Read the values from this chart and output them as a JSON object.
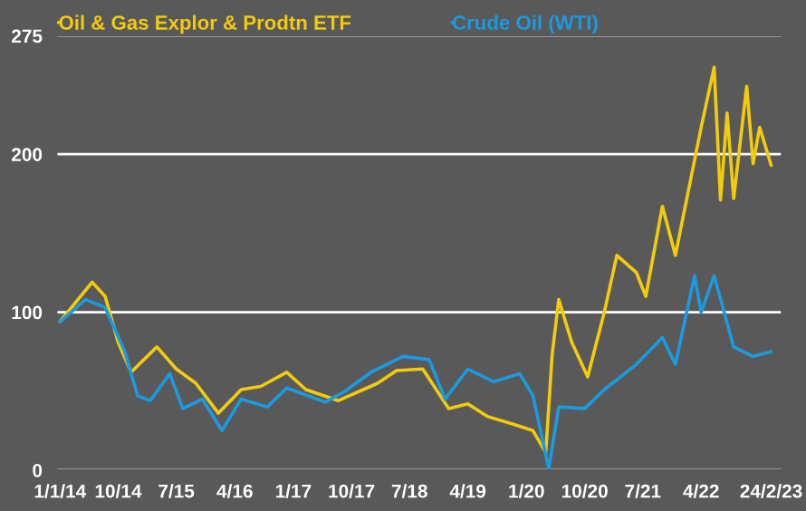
{
  "chart_data": {
    "type": "line",
    "legend": "top left",
    "grid": "y",
    "marker": "none",
    "line_style": "solid",
    "ylim": [
      0,
      275
    ],
    "yticks": [
      0,
      100,
      200,
      275
    ],
    "xlim": [
      "2013-12-15",
      "2023-04-15"
    ],
    "xticks": [
      {
        "value": "2014-01-01",
        "label": "1/1/14"
      },
      {
        "value": "2014-10-01",
        "label": "10/14"
      },
      {
        "value": "2015-07-01",
        "label": "7/15"
      },
      {
        "value": "2016-04-01",
        "label": "4/16"
      },
      {
        "value": "2017-01-01",
        "label": "1/17"
      },
      {
        "value": "2017-10-01",
        "label": "10/17"
      },
      {
        "value": "2018-07-01",
        "label": "7/18"
      },
      {
        "value": "2019-04-01",
        "label": "4/19"
      },
      {
        "value": "2020-01-01",
        "label": "1/20"
      },
      {
        "value": "2020-10-01",
        "label": "10/20"
      },
      {
        "value": "2021-07-01",
        "label": "7/21"
      },
      {
        "value": "2022-04-01",
        "label": "4/22"
      },
      {
        "value": "2023-02-24",
        "label": "24/2/23"
      }
    ],
    "series": [
      {
        "name": "Oil & Gas Explor & Prodtn ETF",
        "color": "#f2cc0c",
        "x": [
          "2014-01-01",
          "2014-06-01",
          "2014-08-01",
          "2014-10-01",
          "2014-12-01",
          "2015-04-01",
          "2015-07-01",
          "2015-10-01",
          "2016-01-15",
          "2016-05-01",
          "2016-08-01",
          "2016-12-01",
          "2017-03-01",
          "2017-08-01",
          "2018-02-01",
          "2018-05-01",
          "2018-09-01",
          "2019-01-01",
          "2019-04-01",
          "2019-07-01",
          "2019-11-01",
          "2020-02-01",
          "2020-04-01",
          "2020-05-01",
          "2020-06-01",
          "2020-08-01",
          "2020-10-15",
          "2021-01-01",
          "2021-03-01",
          "2021-06-01",
          "2021-07-15",
          "2021-10-01",
          "2021-12-01",
          "2022-04-01",
          "2022-06-01",
          "2022-07-01",
          "2022-08-01",
          "2022-09-01",
          "2022-11-01",
          "2022-12-01",
          "2023-01-01",
          "2023-02-24"
        ],
        "values": [
          94,
          119,
          110,
          81,
          62,
          78,
          64,
          55,
          36,
          51,
          53,
          62,
          51,
          44,
          55,
          63,
          64,
          39,
          42,
          34,
          29,
          25,
          11,
          73,
          108,
          81,
          59,
          100,
          136,
          125,
          110,
          167,
          136,
          217,
          255,
          171,
          226,
          172,
          243,
          194,
          217,
          193
        ]
      },
      {
        "name": "Crude Oil (WTI)",
        "color": "#1b9ae0",
        "x": [
          "2014-01-01",
          "2014-05-01",
          "2014-08-01",
          "2014-11-01",
          "2015-01-01",
          "2015-03-01",
          "2015-06-01",
          "2015-08-01",
          "2015-11-01",
          "2016-02-01",
          "2016-05-01",
          "2016-09-01",
          "2016-12-01",
          "2017-06-01",
          "2017-09-01",
          "2018-01-01",
          "2018-06-01",
          "2018-10-01",
          "2018-12-15",
          "2019-04-01",
          "2019-08-01",
          "2019-12-01",
          "2020-02-01",
          "2020-04-15",
          "2020-06-01",
          "2020-10-01",
          "2021-01-01",
          "2021-06-01",
          "2021-10-01",
          "2021-12-01",
          "2022-03-01",
          "2022-04-01",
          "2022-06-01",
          "2022-09-01",
          "2022-12-01",
          "2023-02-24"
        ],
        "values": [
          94,
          108,
          103,
          75,
          47,
          44,
          61,
          39,
          45,
          25,
          45,
          40,
          52,
          43,
          50,
          62,
          72,
          70,
          45,
          64,
          56,
          61,
          47,
          1,
          40,
          39,
          51,
          67,
          84,
          67,
          123,
          100,
          123,
          78,
          72,
          75
        ]
      }
    ]
  }
}
